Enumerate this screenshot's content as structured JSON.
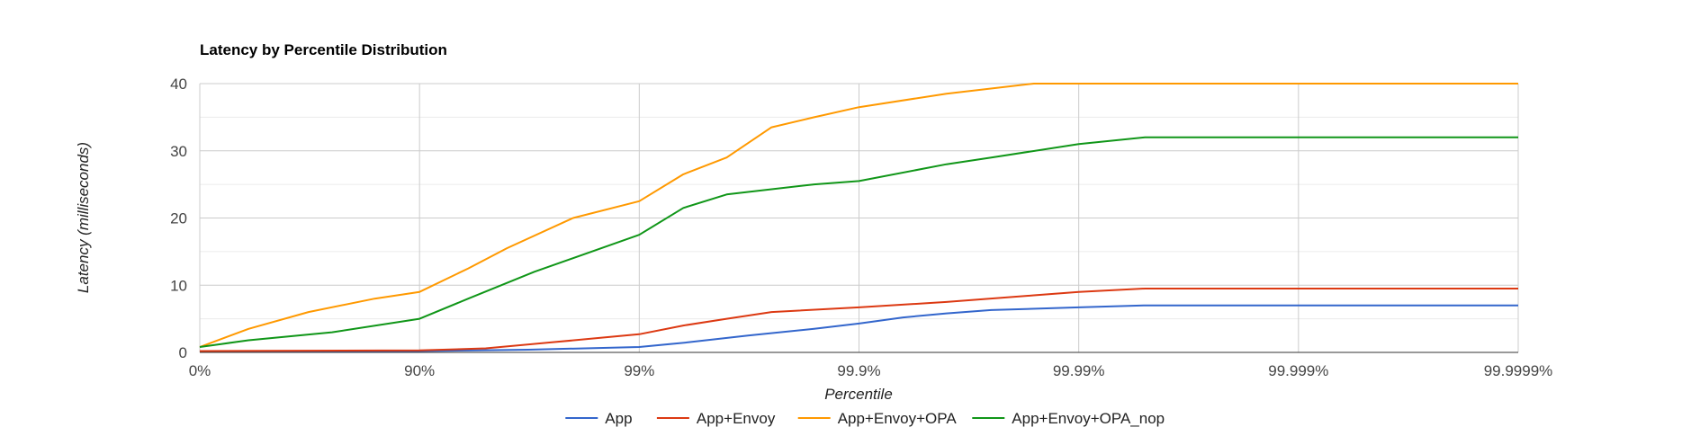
{
  "chart_data": {
    "type": "line",
    "title": "Latency by Percentile Distribution",
    "xlabel": "Percentile",
    "ylabel": "Latency (milliseconds)",
    "x_scale": "percentile (log of 1/(1-p))",
    "x_ticks": [
      "0%",
      "90%",
      "99%",
      "99.9%",
      "99.99%",
      "99.999%",
      "99.9999%"
    ],
    "y_ticks": [
      0,
      10,
      20,
      30,
      40
    ],
    "ylim": [
      0,
      40
    ],
    "grid": true,
    "legend_position": "bottom",
    "series": [
      {
        "name": "App",
        "color": "#3366cc",
        "x": [
          "0%",
          "90%",
          "96.8%",
          "99%",
          "99.4%",
          "99.68%",
          "99.84%",
          "99.9%",
          "99.937%",
          "99.96%",
          "99.975%",
          "99.99%",
          "99.995%",
          "99.999%",
          "99.9999%"
        ],
        "y": [
          0.1,
          0.2,
          0.4,
          0.8,
          1.5,
          2.5,
          3.5,
          4.3,
          5.2,
          5.8,
          6.3,
          6.7,
          7.0,
          7.0,
          7.0
        ]
      },
      {
        "name": "App+Envoy",
        "color": "#dc3912",
        "x": [
          "0%",
          "90%",
          "95%",
          "97.5%",
          "99%",
          "99.37%",
          "99.6%",
          "99.75%",
          "99.9%",
          "99.96%",
          "99.984%",
          "99.99%",
          "99.995%",
          "99.999%",
          "99.9999%"
        ],
        "y": [
          0.2,
          0.3,
          0.6,
          1.5,
          2.7,
          4.0,
          5.0,
          6.0,
          6.7,
          7.5,
          8.5,
          9.0,
          9.5,
          9.5,
          9.5
        ]
      },
      {
        "name": "App+Envoy+OPA",
        "color": "#ff9900",
        "x": [
          "0%",
          "40%",
          "68%",
          "84%",
          "90%",
          "94%",
          "96%",
          "98%",
          "99%",
          "99.37%",
          "99.6%",
          "99.75%",
          "99.84%",
          "99.9%",
          "99.96%",
          "99.984%",
          "99.99%",
          "99.995%",
          "99.999%",
          "99.9999%"
        ],
        "y": [
          0.8,
          3.5,
          6.0,
          8.0,
          9.0,
          12.5,
          15.5,
          20.0,
          22.5,
          26.5,
          29.0,
          33.5,
          35.0,
          36.5,
          38.5,
          40.0,
          40.0,
          40.0,
          40.0,
          40.0
        ]
      },
      {
        "name": "App+Envoy+OPA_nop",
        "color": "#109618",
        "x": [
          "0%",
          "40%",
          "75%",
          "90%",
          "94%",
          "97%",
          "99%",
          "99.37%",
          "99.6%",
          "99.84%",
          "99.9%",
          "99.96%",
          "99.975%",
          "99.99%",
          "99.995%",
          "99.999%",
          "99.9999%"
        ],
        "y": [
          0.8,
          1.8,
          3.0,
          5.0,
          8.0,
          12.0,
          17.5,
          21.5,
          23.5,
          25.0,
          25.5,
          28.0,
          29.0,
          31.0,
          32.0,
          32.0,
          32.0
        ]
      }
    ]
  }
}
